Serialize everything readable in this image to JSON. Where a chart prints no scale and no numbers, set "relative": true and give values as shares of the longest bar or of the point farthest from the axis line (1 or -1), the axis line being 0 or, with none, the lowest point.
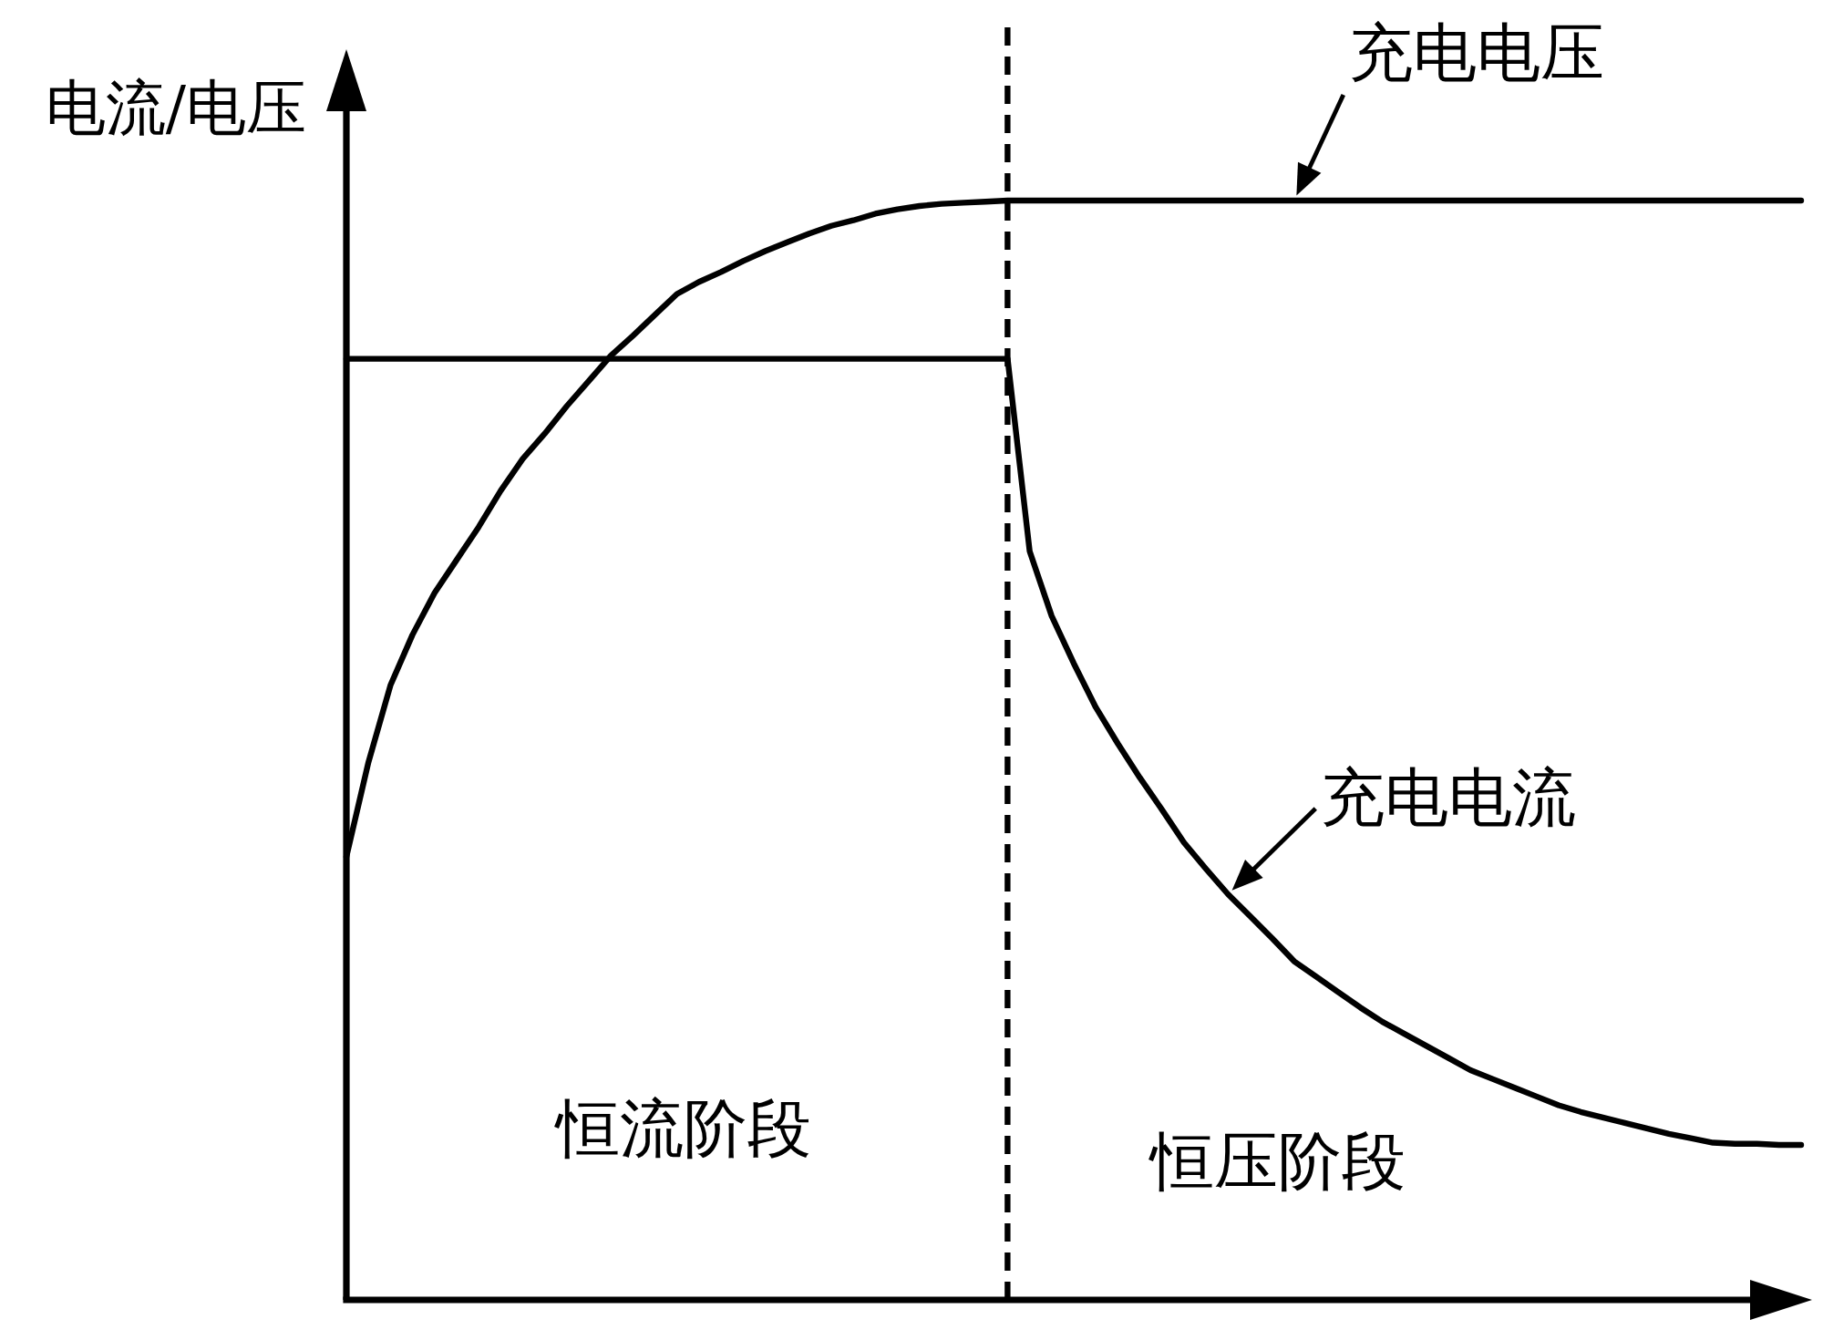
{
  "chart_data": {
    "type": "line",
    "relative": true,
    "ylabel": "电流/电压",
    "categories": [
      null,
      null,
      null,
      null,
      null,
      null,
      null,
      null,
      null,
      null,
      null,
      null,
      null,
      null,
      null,
      null,
      null,
      null,
      null,
      null,
      null,
      null,
      null,
      null,
      null,
      null,
      null,
      null,
      null,
      null,
      null,
      null,
      null,
      null,
      null,
      null,
      null,
      null,
      null,
      null,
      null,
      null,
      null,
      null,
      null,
      null,
      null,
      null,
      null,
      null,
      null,
      null,
      null,
      null,
      null,
      null,
      null,
      null,
      null,
      null,
      null,
      null,
      null,
      null,
      null,
      null,
      null
    ],
    "series": [
      {
        "name": "充电电压",
        "color": "#000000",
        "values": [
          0.403,
          0.489,
          0.559,
          0.605,
          0.643,
          0.673,
          0.703,
          0.736,
          0.765,
          0.788,
          0.813,
          0.836,
          0.859,
          0.877,
          0.896,
          0.915,
          0.926,
          0.935,
          0.945,
          0.954,
          0.962,
          0.97,
          0.977,
          0.982,
          0.988,
          0.992,
          0.995,
          0.997,
          0.998,
          0.999,
          1,
          1,
          1,
          1,
          1,
          1,
          1,
          1,
          1,
          1,
          1,
          1,
          1,
          1,
          1,
          1,
          1,
          1,
          1,
          1,
          1,
          1,
          1,
          1,
          1,
          1,
          1,
          1,
          1,
          1,
          1,
          1,
          1,
          1,
          1,
          1,
          1
        ]
      },
      {
        "name": "充电电流",
        "color": "#000000",
        "values": [
          0.856,
          0.856,
          0.856,
          0.856,
          0.856,
          0.856,
          0.856,
          0.856,
          0.856,
          0.856,
          0.856,
          0.856,
          0.856,
          0.856,
          0.856,
          0.856,
          0.856,
          0.856,
          0.856,
          0.856,
          0.856,
          0.856,
          0.856,
          0.856,
          0.856,
          0.856,
          0.856,
          0.856,
          0.856,
          0.856,
          0.856,
          0.681,
          0.622,
          0.579,
          0.539,
          0.506,
          0.475,
          0.446,
          0.416,
          0.392,
          0.369,
          0.349,
          0.329,
          0.308,
          0.294,
          0.28,
          0.266,
          0.253,
          0.242,
          0.231,
          0.22,
          0.209,
          0.201,
          0.193,
          0.185,
          0.177,
          0.171,
          0.166,
          0.161,
          0.156,
          0.151,
          0.147,
          0.143,
          0.142,
          0.142,
          0.141,
          0.141
        ]
      }
    ],
    "annotations": [
      "恒流阶段",
      "恒压阶段"
    ]
  }
}
